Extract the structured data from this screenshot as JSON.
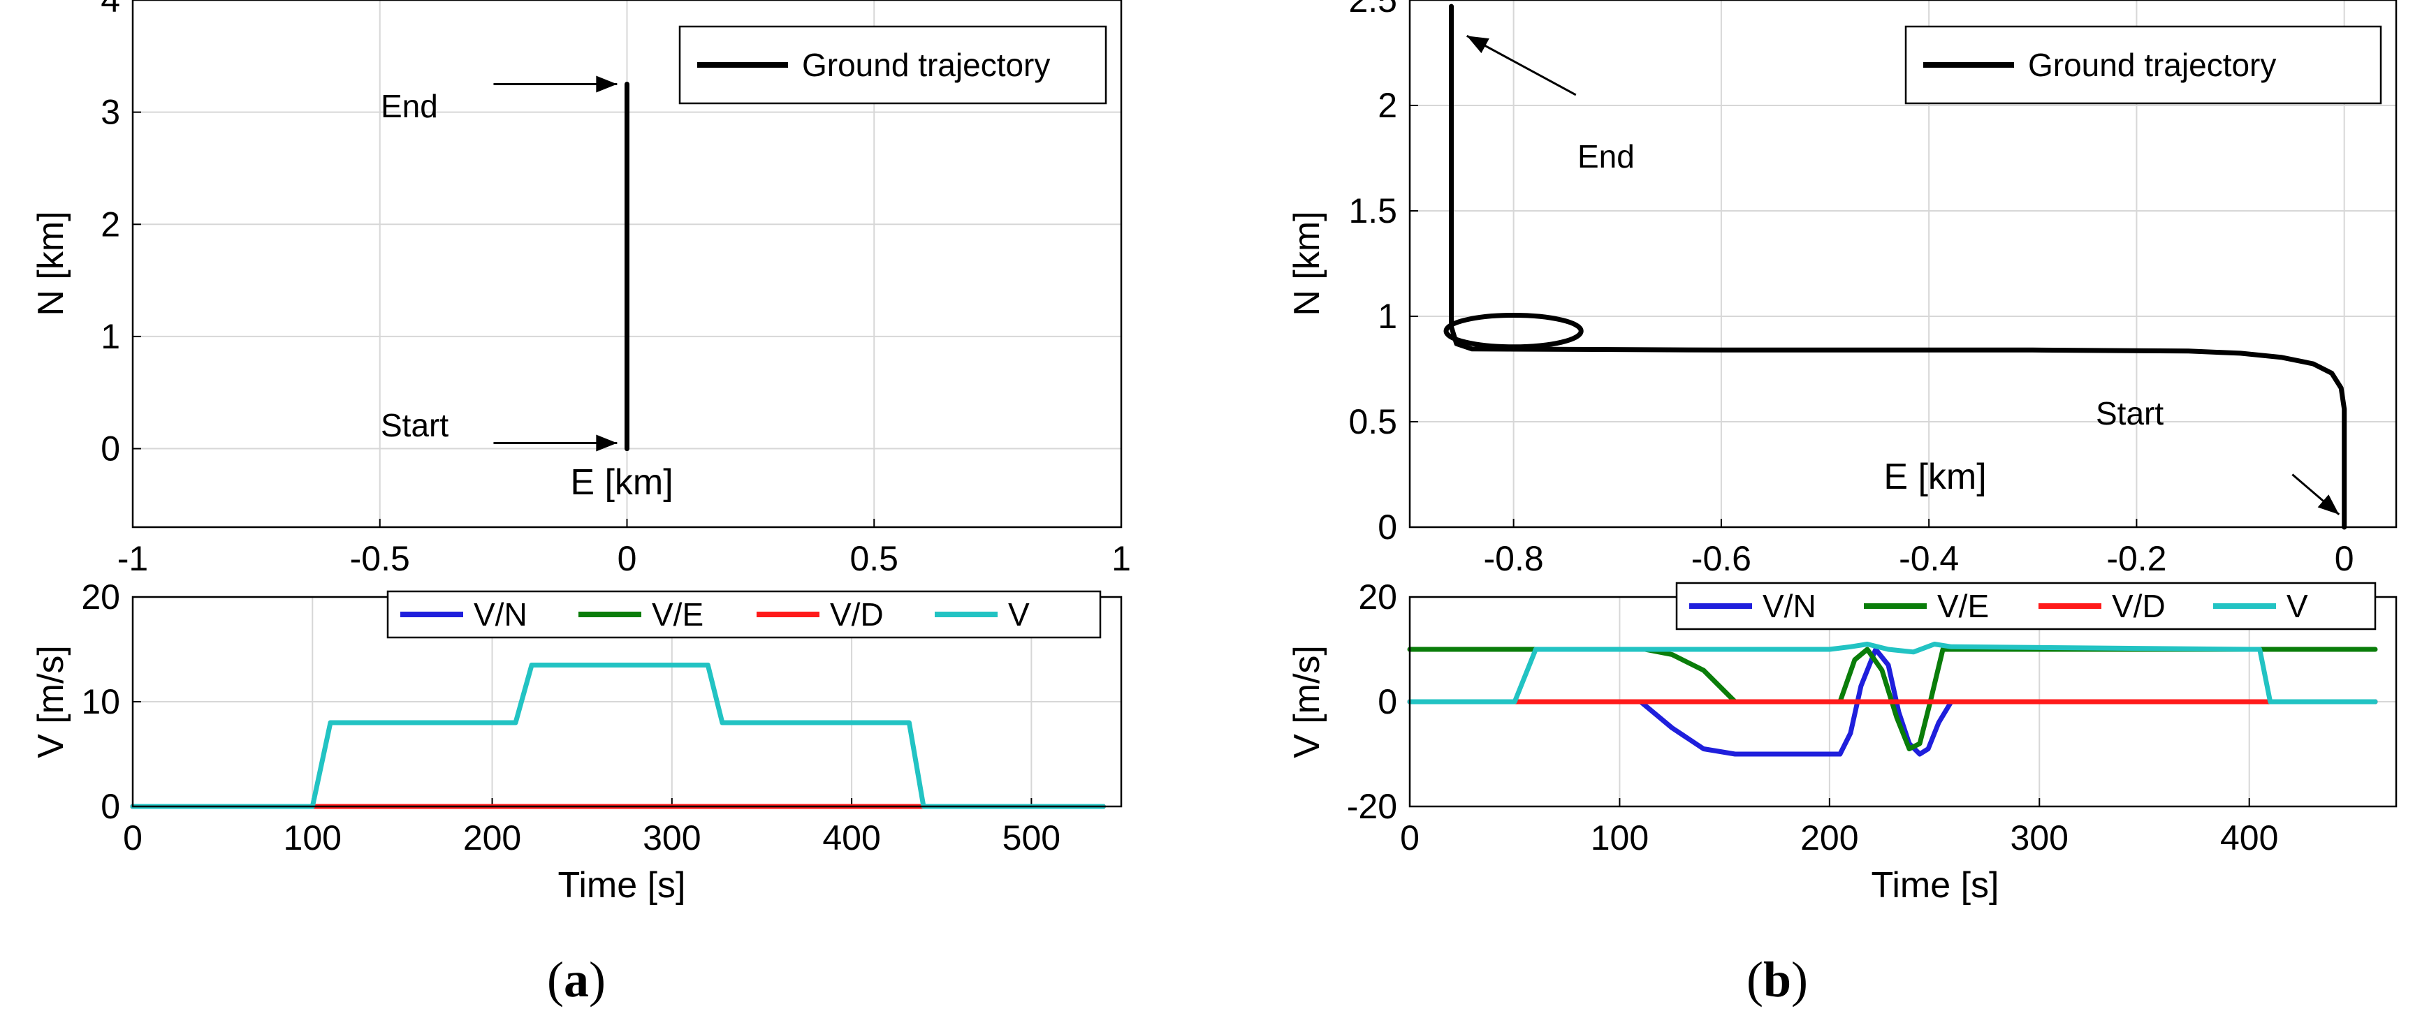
{
  "colors": {
    "vn": "#1f1fdc",
    "ve": "#0a7d0a",
    "vd": "#ff1a1a",
    "v": "#22c3c3",
    "trajectory": "#000000",
    "grid": "#d7d7d7"
  },
  "chart_data": [
    {
      "id": "a-top",
      "type": "line",
      "xlabel": "E [km]",
      "ylabel": "N [km]",
      "xlim": [
        -1,
        1
      ],
      "ylim": [
        -0.7,
        4
      ],
      "xticks": [
        -1,
        -0.5,
        0,
        0.5,
        1
      ],
      "xtick_labels": [
        "-1",
        "-0.5",
        "0",
        "0.5",
        "1"
      ],
      "yticks": [
        0,
        1,
        2,
        3,
        4
      ],
      "ytick_labels": [
        "0",
        "1",
        "2",
        "3",
        "4"
      ],
      "grid": true,
      "legend": "top-right",
      "series": [
        {
          "name": "Ground trajectory",
          "color": "#000000",
          "x": [
            0,
            0
          ],
          "y": [
            0,
            3.25
          ]
        }
      ],
      "annotations": [
        {
          "text": "End",
          "arrow_from": [
            -0.27,
            3.25
          ],
          "arrow_to": [
            -0.02,
            3.25
          ]
        },
        {
          "text": "Start",
          "arrow_from": [
            -0.27,
            0.05
          ],
          "arrow_to": [
            -0.02,
            0.05
          ]
        }
      ]
    },
    {
      "id": "a-bottom",
      "type": "line",
      "xlabel": "Time [s]",
      "ylabel": "V [m/s]",
      "xlim": [
        0,
        550
      ],
      "ylim": [
        0,
        20
      ],
      "xticks": [
        0,
        100,
        200,
        300,
        400,
        500
      ],
      "xtick_labels": [
        "0",
        "100",
        "200",
        "300",
        "400",
        "500"
      ],
      "yticks": [
        0,
        10,
        20
      ],
      "ytick_labels": [
        "0",
        "10",
        "20"
      ],
      "grid": true,
      "legend": "top-right",
      "series": [
        {
          "name": "V/N",
          "color": "#1f1fdc",
          "x": [
            0,
            540
          ],
          "y": [
            0,
            0
          ]
        },
        {
          "name": "V/E",
          "color": "#0a7d0a",
          "x": [
            0,
            540
          ],
          "y": [
            0,
            0
          ]
        },
        {
          "name": "V/D",
          "color": "#ff1a1a",
          "x": [
            0,
            540
          ],
          "y": [
            0,
            0
          ]
        },
        {
          "name": "V",
          "color": "#22c3c3",
          "x": [
            0,
            100,
            110,
            213,
            222,
            320,
            328,
            432,
            440,
            540
          ],
          "y": [
            0,
            0,
            8,
            8,
            13.5,
            13.5,
            8,
            8,
            0,
            0
          ]
        }
      ]
    },
    {
      "id": "b-top",
      "type": "line",
      "xlabel": "E [km]",
      "ylabel": "N [km]",
      "xlim": [
        -0.9,
        0.05
      ],
      "ylim": [
        0,
        2.5
      ],
      "xticks": [
        -0.8,
        -0.6,
        -0.4,
        -0.2,
        0
      ],
      "xtick_labels": [
        "-0.8",
        "-0.6",
        "-0.4",
        "-0.2",
        "0"
      ],
      "yticks": [
        0,
        0.5,
        1,
        1.5,
        2,
        2.5
      ],
      "ytick_labels": [
        "0",
        "0.5",
        "1",
        "1.5",
        "2",
        "2.5"
      ],
      "grid": true,
      "legend": "top-right",
      "series": [
        {
          "name": "Ground  trajectory",
          "color": "#000000",
          "x": [
            0,
            0,
            -0.003,
            -0.012,
            -0.03,
            -0.06,
            -0.1,
            -0.15,
            -0.3,
            -0.6,
            -0.84,
            -0.855,
            -0.86,
            -0.86
          ],
          "y": [
            0,
            0.56,
            0.66,
            0.73,
            0.775,
            0.805,
            0.825,
            0.835,
            0.84,
            0.84,
            0.845,
            0.87,
            0.95,
            2.47
          ]
        }
      ],
      "annotations": [
        {
          "text": "End",
          "arrow_from": [
            -0.74,
            2.05
          ],
          "arrow_to": [
            -0.845,
            2.33
          ]
        },
        {
          "text": "Start",
          "arrow_from": [
            -0.05,
            0.25
          ],
          "arrow_to": [
            -0.005,
            0.06
          ]
        }
      ]
    },
    {
      "id": "b-bottom",
      "type": "line",
      "xlabel": "Time [s]",
      "ylabel": "V [m/s]",
      "xlim": [
        0,
        470
      ],
      "ylim": [
        -20,
        20
      ],
      "xticks": [
        0,
        100,
        200,
        300,
        400
      ],
      "xtick_labels": [
        "0",
        "100",
        "200",
        "300",
        "400"
      ],
      "yticks": [
        -20,
        0,
        20
      ],
      "ytick_labels": [
        "-20",
        "0",
        "20"
      ],
      "grid": true,
      "legend": "top-right",
      "series": [
        {
          "name": "V/N",
          "color": "#1f1fdc",
          "x": [
            0,
            110,
            125,
            140,
            155,
            205,
            210,
            215,
            222,
            228,
            233,
            238,
            243,
            247,
            252,
            258,
            460
          ],
          "y": [
            0,
            0,
            -5,
            -9,
            -10,
            -10,
            -6,
            3,
            10,
            7,
            -2,
            -8,
            -10,
            -9,
            -4,
            0,
            0
          ]
        },
        {
          "name": "V/E",
          "color": "#0a7d0a",
          "x": [
            0,
            112,
            125,
            140,
            155,
            200,
            205,
            212,
            218,
            225,
            232,
            238,
            243,
            248,
            254,
            460
          ],
          "y": [
            10,
            10,
            9,
            6,
            0,
            0,
            0,
            8,
            10,
            6,
            -3,
            -9,
            -8,
            0,
            10,
            10
          ]
        },
        {
          "name": "V/D",
          "color": "#ff1a1a",
          "x": [
            0,
            460
          ],
          "y": [
            0,
            0
          ]
        },
        {
          "name": "V",
          "color": "#22c3c3",
          "x": [
            0,
            50,
            60,
            200,
            210,
            218,
            228,
            240,
            250,
            258,
            400,
            405,
            410,
            460
          ],
          "y": [
            0,
            0,
            10,
            10,
            10.5,
            11,
            10,
            9.5,
            11,
            10.5,
            10,
            10,
            0,
            0
          ]
        }
      ]
    }
  ],
  "captions": {
    "a": "a",
    "b": "b"
  }
}
